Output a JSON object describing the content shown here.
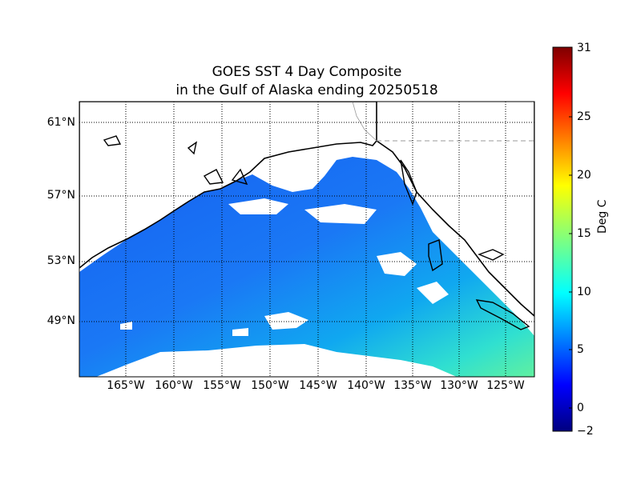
{
  "title": {
    "line1": "GOES SST 4 Day Composite",
    "line2": "in the Gulf of Alaska ending 20250518"
  },
  "map": {
    "lat_labels": [
      "61°N",
      "57°N",
      "53°N",
      "49°N"
    ],
    "lon_labels": [
      "165°W",
      "160°W",
      "155°W",
      "150°W",
      "145°W",
      "140°W",
      "135°W",
      "130°W",
      "125°W"
    ],
    "land_color": "#ffffff",
    "coastline_color": "#000000",
    "gridline_style": "dotted"
  },
  "colorbar": {
    "label": "Deg C",
    "min": -2,
    "max": 31,
    "ticks": [
      "31",
      "25",
      "20",
      "15",
      "10",
      "5",
      "0",
      "−2"
    ],
    "colormap": "jet"
  }
}
